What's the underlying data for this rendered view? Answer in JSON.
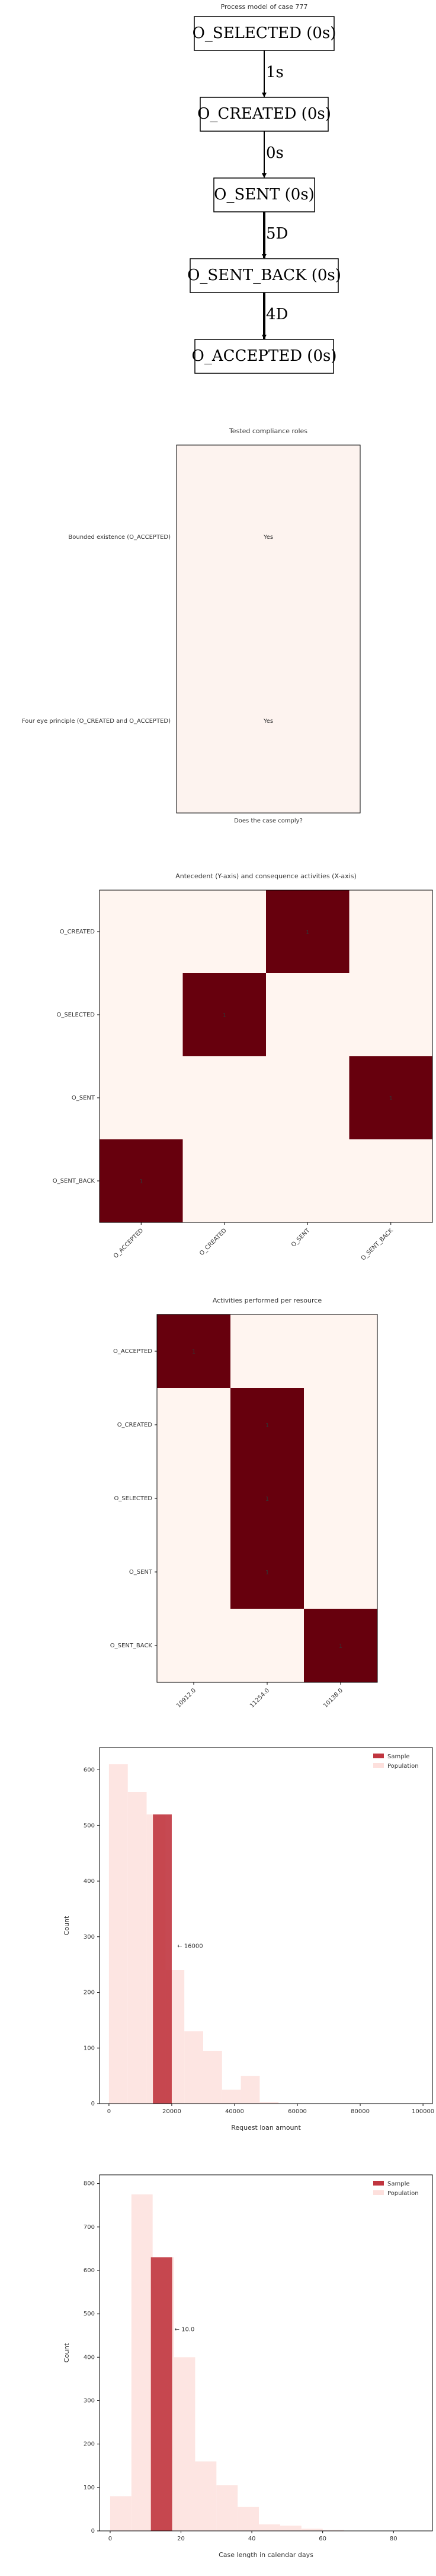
{
  "process_model": {
    "title": "Process model of case 777",
    "nodes": [
      "O_SELECTED (0s)",
      "O_CREATED (0s)",
      "O_SENT (0s)",
      "O_SENT_BACK (0s)",
      "O_ACCEPTED (0s)"
    ],
    "edges": [
      "1s",
      "0s",
      "5D",
      "4D"
    ]
  },
  "chart_data": [
    {
      "type": "table",
      "title": "Tested compliance roles",
      "xlabel": "Does the case comply?",
      "rows": [
        "Bounded existence (O_ACCEPTED)",
        "Four eye principle (O_CREATED and O_ACCEPTED)"
      ],
      "values": [
        "Yes",
        "Yes"
      ],
      "colors": {
        "fill": "#fdf3ef",
        "text": "#4a6fa5"
      }
    },
    {
      "type": "heatmap",
      "title": "Antecedent (Y-axis) and consequence activities (X-axis)",
      "y_categories": [
        "O_CREATED",
        "O_SELECTED",
        "O_SENT",
        "O_SENT_BACK"
      ],
      "x_categories": [
        "O_ACCEPTED",
        "O_CREATED",
        "O_SENT",
        "O_SENT_BACK"
      ],
      "cells": [
        {
          "y": "O_CREATED",
          "x": "O_SENT",
          "value": 1
        },
        {
          "y": "O_SELECTED",
          "x": "O_CREATED",
          "value": 1
        },
        {
          "y": "O_SENT",
          "x": "O_SENT_BACK",
          "value": 1
        },
        {
          "y": "O_SENT_BACK",
          "x": "O_ACCEPTED",
          "value": 1
        }
      ],
      "colors": {
        "low": "#fff5f0",
        "high": "#67000d",
        "text": "#ffffff"
      }
    },
    {
      "type": "heatmap",
      "title": "Activities performed per resource",
      "y_categories": [
        "O_ACCEPTED",
        "O_CREATED",
        "O_SELECTED",
        "O_SENT",
        "O_SENT_BACK"
      ],
      "x_categories": [
        "10912.0",
        "11254.0",
        "10138.0"
      ],
      "cells": [
        {
          "y": "O_ACCEPTED",
          "x": "10912.0",
          "value": 1
        },
        {
          "y": "O_CREATED",
          "x": "11254.0",
          "value": 1
        },
        {
          "y": "O_SELECTED",
          "x": "11254.0",
          "value": 1
        },
        {
          "y": "O_SENT",
          "x": "11254.0",
          "value": 1
        },
        {
          "y": "O_SENT_BACK",
          "x": "10138.0",
          "value": 1
        }
      ],
      "colors": {
        "low": "#fff5f0",
        "high": "#67000d",
        "text": "#ffffff"
      }
    },
    {
      "type": "bar",
      "xlabel": "Request loan amount",
      "ylabel": "Count",
      "xlim": [
        -3000,
        103000
      ],
      "ylim": [
        0,
        640
      ],
      "xticks": [
        0,
        20000,
        40000,
        60000,
        80000,
        100000
      ],
      "yticks": [
        0,
        100,
        200,
        300,
        400,
        500,
        600
      ],
      "legend": "top-right",
      "annotation": "← 16000",
      "annotation_at": {
        "x": 21000,
        "y": 280
      },
      "series": [
        {
          "name": "Sample",
          "color": "#c0353f",
          "bins": [
            {
              "x0": 14000,
              "x1": 20000,
              "count": 520
            }
          ]
        },
        {
          "name": "Population",
          "color": "#fde0dd",
          "bins": [
            {
              "x0": 0,
              "x1": 6000,
              "count": 610
            },
            {
              "x0": 6000,
              "x1": 12000,
              "count": 560
            },
            {
              "x0": 12000,
              "x1": 18000,
              "count": 520
            },
            {
              "x0": 18000,
              "x1": 24000,
              "count": 240
            },
            {
              "x0": 24000,
              "x1": 30000,
              "count": 130
            },
            {
              "x0": 30000,
              "x1": 36000,
              "count": 95
            },
            {
              "x0": 36000,
              "x1": 42000,
              "count": 25
            },
            {
              "x0": 42000,
              "x1": 48000,
              "count": 50
            },
            {
              "x0": 48000,
              "x1": 54000,
              "count": 3
            }
          ]
        }
      ]
    },
    {
      "type": "bar",
      "xlabel": "Case length in calendar days",
      "ylabel": "Count",
      "xlim": [
        -3,
        91
      ],
      "ylim": [
        0,
        820
      ],
      "xticks": [
        0,
        20,
        40,
        60,
        80
      ],
      "yticks": [
        0,
        100,
        200,
        300,
        400,
        500,
        600,
        700,
        800
      ],
      "legend": "top-right",
      "annotation": "← 10.0",
      "annotation_at": {
        "x": 17.5,
        "y": 460
      },
      "series": [
        {
          "name": "Sample",
          "color": "#c0353f",
          "bins": [
            {
              "x0": 11.5,
              "x1": 17.5,
              "count": 630
            }
          ]
        },
        {
          "name": "Population",
          "color": "#fde0dd",
          "bins": [
            {
              "x0": 0,
              "x1": 6,
              "count": 80
            },
            {
              "x0": 6,
              "x1": 12,
              "count": 775
            },
            {
              "x0": 12,
              "x1": 18,
              "count": 630
            },
            {
              "x0": 18,
              "x1": 24,
              "count": 400
            },
            {
              "x0": 24,
              "x1": 30,
              "count": 160
            },
            {
              "x0": 30,
              "x1": 36,
              "count": 105
            },
            {
              "x0": 36,
              "x1": 42,
              "count": 55
            },
            {
              "x0": 42,
              "x1": 48,
              "count": 15
            },
            {
              "x0": 48,
              "x1": 54,
              "count": 12
            },
            {
              "x0": 54,
              "x1": 60,
              "count": 5
            },
            {
              "x0": 60,
              "x1": 66,
              "count": 2
            }
          ]
        }
      ]
    }
  ]
}
